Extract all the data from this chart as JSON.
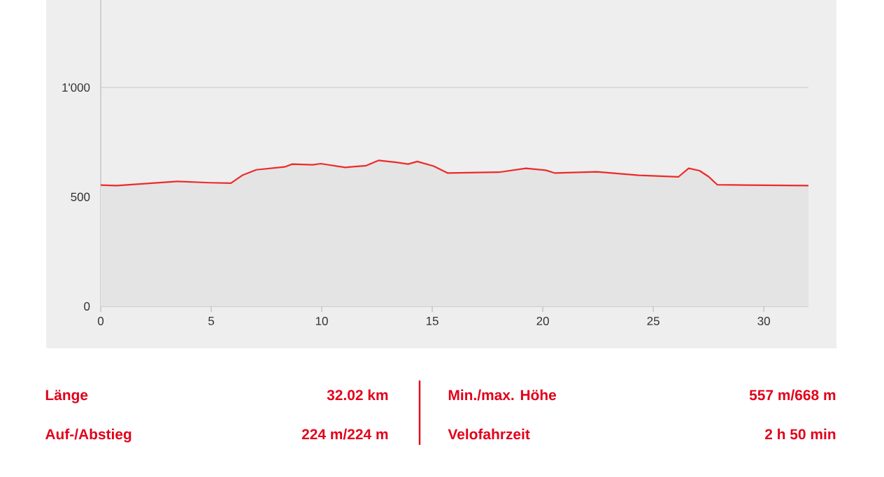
{
  "chart_data": {
    "type": "area",
    "x": [
      0,
      0.72,
      3.46,
      4.94,
      5.89,
      6.41,
      7.04,
      8.31,
      8.67,
      9.58,
      9.96,
      11.06,
      12.01,
      12.58,
      13.38,
      13.91,
      14.32,
      15.06,
      15.7,
      18.02,
      19.24,
      20.13,
      20.55,
      22.45,
      24.35,
      26.14,
      26.6,
      27.09,
      27.51,
      27.89,
      29.19,
      32.02
    ],
    "series": [
      {
        "color": "#ee2a2a",
        "values": [
          554,
          552,
          571,
          565,
          563,
          599,
          624,
          637,
          650,
          647,
          652,
          635,
          643,
          667,
          658,
          650,
          662,
          641,
          609,
          613,
          631,
          622,
          609,
          615,
          599,
          592,
          631,
          620,
          592,
          556,
          554,
          552
        ]
      }
    ],
    "xlim": [
      0,
      32.02
    ],
    "ylim": [
      0,
      1400
    ],
    "xticks": [
      0,
      5,
      10,
      15,
      20,
      25,
      30
    ],
    "yticks": [
      0,
      500,
      {
        "value": 1000,
        "label": "1'000"
      }
    ],
    "grid": "y",
    "annotations": [
      "Länge",
      "32.02 km",
      "Auf-/Abstieg",
      "224 m/224 m",
      "Min./max. Höhe",
      "557 m/668 m",
      "Velofahrzeit",
      "2 h 50 min"
    ]
  }
}
